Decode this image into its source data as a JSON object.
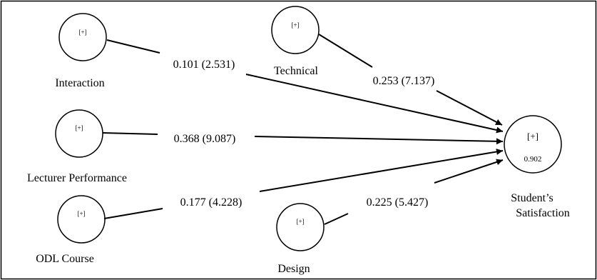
{
  "nodes": {
    "interaction": {
      "label": "Interaction",
      "marker": "[+]"
    },
    "technical": {
      "label": "Technical",
      "marker": "[+]"
    },
    "lecturer": {
      "label": "Lecturer Performance",
      "marker": "[+]"
    },
    "odl": {
      "label": "ODL Course",
      "marker": "[+]"
    },
    "design": {
      "label": "Design",
      "marker": "[+]"
    },
    "satisfaction": {
      "label_line1": "Student’s",
      "label_line2": "Satisfaction",
      "marker": "[+]",
      "r2": "0.902"
    }
  },
  "paths": {
    "interaction": "0.101 (2.531)",
    "technical": "0.253 (7.137)",
    "lecturer": "0.368 (9.087)",
    "odl": "0.177 (4.228)",
    "design": "0.225 (5.427)"
  }
}
